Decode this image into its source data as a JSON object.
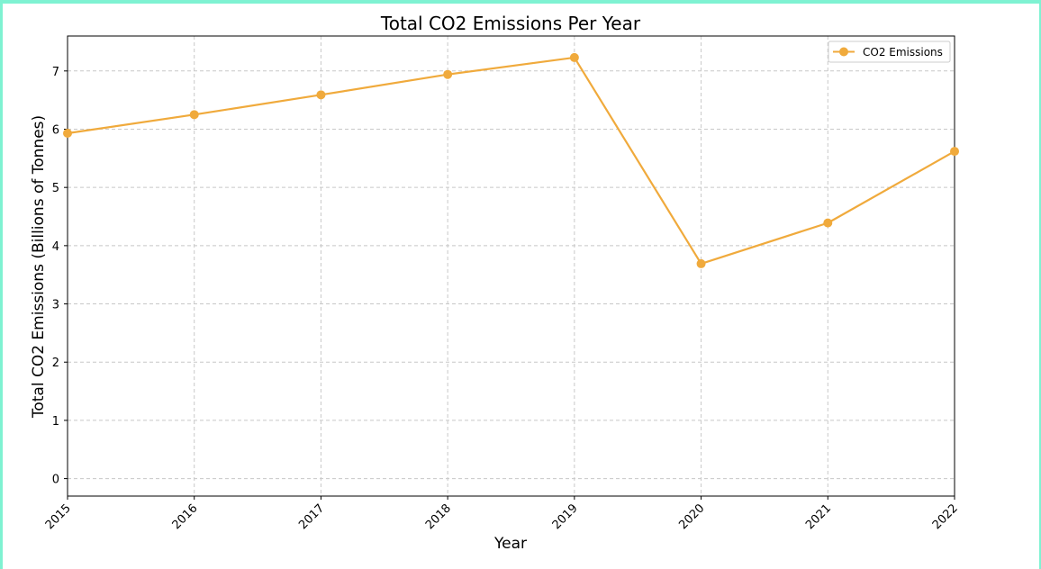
{
  "frame": {
    "border_color": "#7ff2d2"
  },
  "chart_data": {
    "type": "line",
    "title": "Total CO2 Emissions Per Year",
    "xlabel": "Year",
    "ylabel": "Total CO2 Emissions (Billions of Tonnes)",
    "x": [
      "2015",
      "2016",
      "2017",
      "2018",
      "2019",
      "2020",
      "2021",
      "2022"
    ],
    "series": [
      {
        "name": "CO2 Emissions",
        "color": "#f0aa3c",
        "marker": "circle",
        "values": [
          5.93,
          6.25,
          6.59,
          6.94,
          7.23,
          3.69,
          4.39,
          5.62
        ]
      }
    ],
    "ylim": [
      -0.3,
      7.6
    ],
    "yticks": [
      0,
      1,
      2,
      3,
      4,
      5,
      6,
      7
    ],
    "grid": true,
    "grid_style": "dashed",
    "legend_position": "top-right",
    "xtick_rotation": -45
  }
}
